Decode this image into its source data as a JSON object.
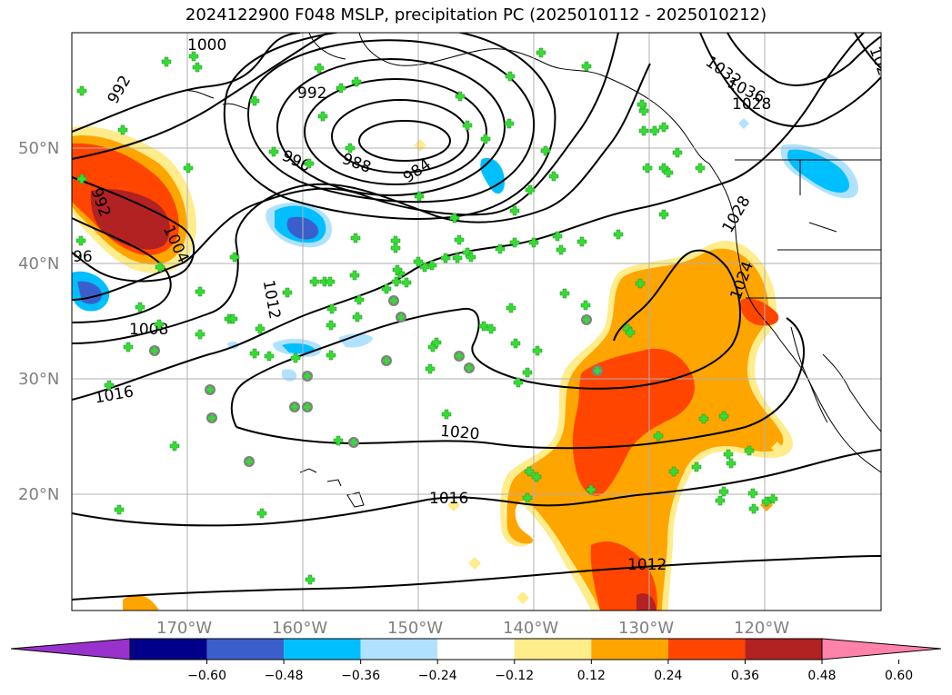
{
  "title": "2024122900 F048 MSLP, precipitation PC (2025010112 - 2025010212)",
  "map": {
    "lat_labels": [
      "50°N",
      "40°N",
      "30°N",
      "20°N"
    ],
    "lon_labels": [
      "170°W",
      "160°W",
      "150°W",
      "140°W",
      "130°W",
      "120°W"
    ],
    "isobar_labels": [
      "1000",
      "992",
      "992",
      "996",
      "988",
      "984",
      "992",
      "1004",
      "96",
      "1012",
      "1008",
      "1016",
      "1020",
      "1016",
      "1012",
      "1024",
      "1028",
      "1028",
      "1032",
      "1036",
      "102"
    ],
    "colors": {
      "isobar": "#000000",
      "station_marker": "#33dd33",
      "land_outline": "#000000",
      "grid": "#b0b0b0"
    }
  },
  "colorbar": {
    "levels": [
      "−0.60",
      "−0.48",
      "−0.36",
      "−0.24",
      "−0.12",
      "0.12",
      "0.24",
      "0.36",
      "0.48",
      "0.60"
    ],
    "colors": [
      "#9932cc",
      "#00008b",
      "#3a5fcd",
      "#00bfff",
      "#b0e2ff",
      "#ffffff",
      "#ffec8b",
      "#ffa500",
      "#ff4500",
      "#b22222",
      "#ff82ab"
    ]
  }
}
